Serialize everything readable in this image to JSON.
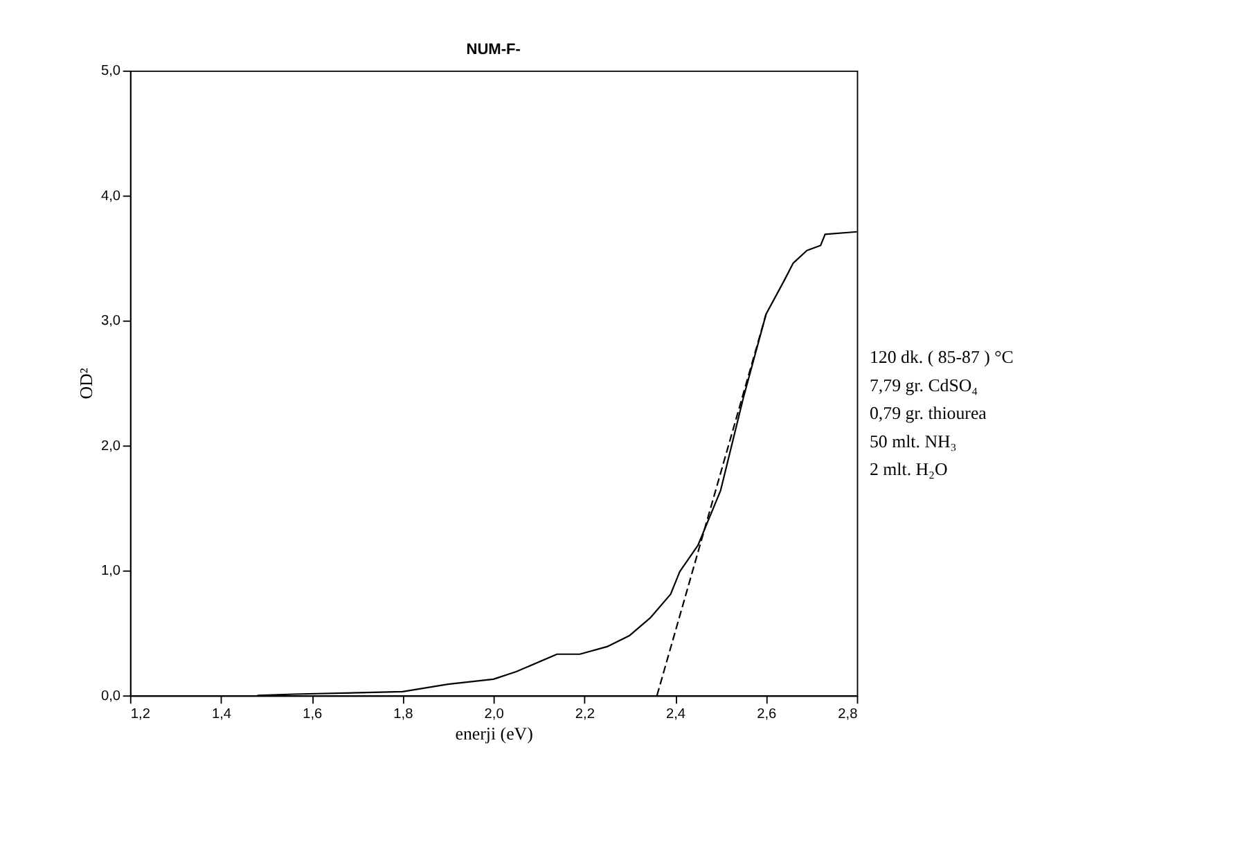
{
  "chart_data": {
    "type": "line",
    "title": "NUM-F-",
    "xlabel": "enerji (eV)",
    "ylabel": "OD²",
    "xlim": [
      1.2,
      2.8
    ],
    "xticks": [
      {
        "value": 1.2,
        "label": "1,2"
      },
      {
        "value": 1.4,
        "label": "1,4"
      },
      {
        "value": 1.6,
        "label": "1,6"
      },
      {
        "value": 1.8,
        "label": "1,8"
      },
      {
        "value": 2.0,
        "label": "2,0"
      },
      {
        "value": 2.2,
        "label": "2,2"
      },
      {
        "value": 2.4,
        "label": "2,4"
      },
      {
        "value": 2.6,
        "label": "2,6"
      },
      {
        "value": 2.8,
        "label": "2,8"
      }
    ],
    "ylim": [
      0,
      5
    ],
    "yticks": [
      {
        "value": 0,
        "label": "0,0"
      },
      {
        "value": 1,
        "label": "1,0"
      },
      {
        "value": 2,
        "label": "2,0"
      },
      {
        "value": 3,
        "label": "3,0"
      },
      {
        "value": 4,
        "label": "4,0"
      },
      {
        "value": 5,
        "label": "5,0"
      }
    ],
    "grid": false,
    "marker": "none",
    "series": [
      {
        "color": "#000000",
        "line_style": "solid",
        "x": [
          1.48,
          1.56,
          1.8,
          1.9,
          2.0,
          2.05,
          2.14,
          2.19,
          2.25,
          2.3,
          2.345,
          2.39,
          2.41,
          2.45,
          2.5,
          2.55,
          2.6,
          2.64,
          2.66,
          2.69,
          2.72,
          2.73,
          2.8
        ],
        "values": [
          0.0,
          0.01,
          0.03,
          0.09,
          0.13,
          0.19,
          0.33,
          0.33,
          0.39,
          0.48,
          0.62,
          0.81,
          0.99,
          1.2,
          1.64,
          2.38,
          3.05,
          3.32,
          3.46,
          3.56,
          3.6,
          3.69,
          3.71
        ]
      },
      {
        "color": "#000000",
        "line_style": "dashed",
        "x": [
          2.36,
          2.6
        ],
        "values": [
          0.0,
          3.05
        ]
      }
    ],
    "annotations": [
      "120 dk. ( 85-87 ) °C",
      "7,79 gr. CdSO₄",
      "0,79 gr. thiourea",
      "50  mlt. NH₃",
      "2    mlt. H₂O"
    ]
  }
}
